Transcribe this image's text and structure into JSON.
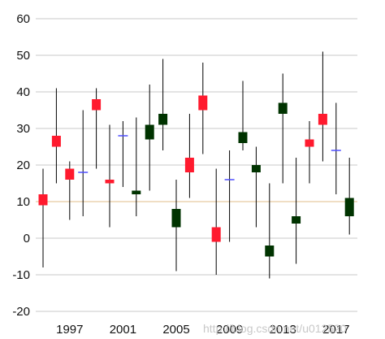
{
  "chart_data": {
    "type": "candlestick",
    "title": "",
    "xlabel": "",
    "ylabel": "",
    "ylim": [
      -21,
      62
    ],
    "yticks": [
      -20,
      -10,
      0,
      10,
      20,
      30,
      40,
      50,
      60
    ],
    "xtick_labels": [
      {
        "year": 1997,
        "label": "1997"
      },
      {
        "year": 2001,
        "label": "2001"
      },
      {
        "year": 2005,
        "label": "2005"
      },
      {
        "year": 2009,
        "label": "2009"
      },
      {
        "year": 2013,
        "label": "2013"
      },
      {
        "year": 2017,
        "label": "2017"
      }
    ],
    "grid": "horizontal",
    "reference_line": {
      "y": 10,
      "color": "#e8c9a0"
    },
    "colors": {
      "increasing": "#ff1a2e",
      "decreasing": "#003300",
      "neutral": "#4d4dff",
      "wick": "#000000",
      "grid": "#c8c8c8"
    },
    "candles": [
      {
        "year": 1995,
        "high": 19,
        "low": -8,
        "open": 12,
        "close": 9
      },
      {
        "year": 1996,
        "high": 41,
        "low": 15,
        "open": 28,
        "close": 25
      },
      {
        "year": 1997,
        "high": 21,
        "low": 5,
        "open": 19,
        "close": 16
      },
      {
        "year": 1998,
        "high": 35,
        "low": 6,
        "open": 18,
        "close": 18
      },
      {
        "year": 1999,
        "high": 41,
        "low": 19,
        "open": 38,
        "close": 35
      },
      {
        "year": 2000,
        "high": 31,
        "low": 3,
        "open": 16,
        "close": 15
      },
      {
        "year": 2001,
        "high": 32,
        "low": 14,
        "open": 28,
        "close": 28
      },
      {
        "year": 2002,
        "high": 33,
        "low": 6,
        "open": 12,
        "close": 13
      },
      {
        "year": 2003,
        "high": 42,
        "low": 13,
        "open": 27,
        "close": 31
      },
      {
        "year": 2004,
        "high": 49,
        "low": 24,
        "open": 31,
        "close": 34
      },
      {
        "year": 2005,
        "high": 16,
        "low": -9,
        "open": 3,
        "close": 8
      },
      {
        "year": 2006,
        "high": 34,
        "low": 11,
        "open": 22,
        "close": 18
      },
      {
        "year": 2007,
        "high": 48,
        "low": 23,
        "open": 39,
        "close": 35
      },
      {
        "year": 2008,
        "high": 19,
        "low": -10,
        "open": 3,
        "close": -1
      },
      {
        "year": 2009,
        "high": 24,
        "low": -1,
        "open": 16,
        "close": 16
      },
      {
        "year": 2010,
        "high": 43,
        "low": 24,
        "open": 26,
        "close": 29
      },
      {
        "year": 2011,
        "high": 25,
        "low": 3,
        "open": 18,
        "close": 20
      },
      {
        "year": 2012,
        "high": 15,
        "low": -11,
        "open": -5,
        "close": -2
      },
      {
        "year": 2013,
        "high": 45,
        "low": 15,
        "open": 34,
        "close": 37
      },
      {
        "year": 2014,
        "high": 22,
        "low": -7,
        "open": 4,
        "close": 6
      },
      {
        "year": 2015,
        "high": 32,
        "low": 15,
        "open": 27,
        "close": 25
      },
      {
        "year": 2016,
        "high": 51,
        "low": 21,
        "open": 34,
        "close": 31
      },
      {
        "year": 2017,
        "high": 37,
        "low": 12,
        "open": 24,
        "close": 24
      },
      {
        "year": 2018,
        "high": 22,
        "low": 1,
        "open": 6,
        "close": 11
      }
    ]
  },
  "watermark": "http://blog.csdn.net/u012520"
}
